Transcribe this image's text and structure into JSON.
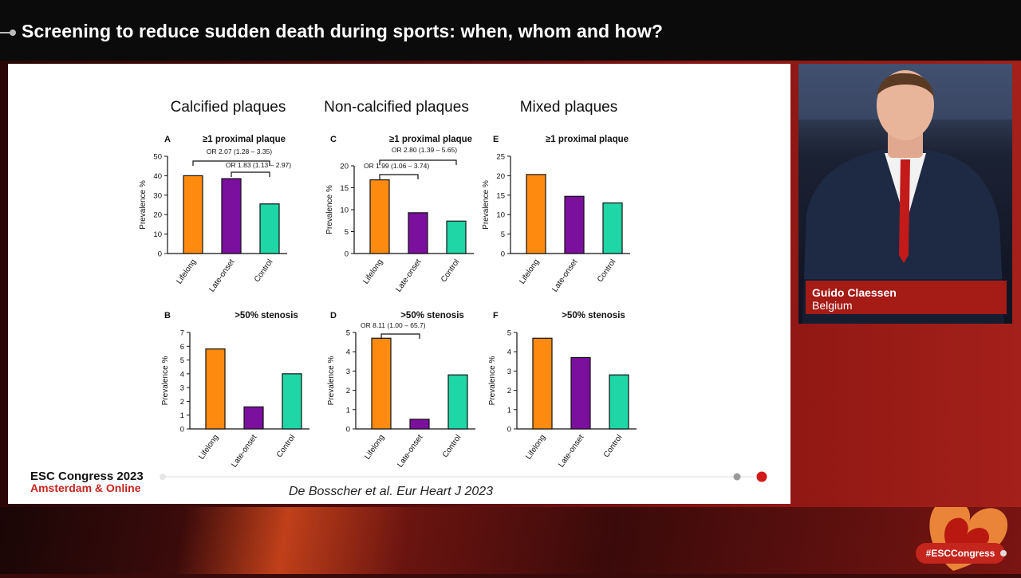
{
  "header": {
    "title": "Screening to reduce sudden death during sports: when, whom and how?"
  },
  "slide": {
    "column_titles": [
      "Calcified plaques",
      "Non-calcified plaques",
      "Mixed plaques"
    ],
    "footer_event": "ESC Congress 2023",
    "footer_location": "Amsterdam & Online",
    "citation": "De Bosscher et al. Eur Heart J 2023"
  },
  "speaker": {
    "name": "Guido Claessen",
    "country": "Belgium"
  },
  "bottom": {
    "hashtag": "#ESCCongress"
  },
  "colors": {
    "Lifelong": "#ff8a10",
    "Late-onset": "#7b0f9e",
    "Control": "#1ed6a6",
    "accent_red": "#c4251c"
  },
  "chart_data": [
    {
      "type": "bar",
      "panel": "A",
      "title": "≥1 proximal plaque",
      "ylabel": "Prevalence %",
      "categories": [
        "Lifelong",
        "Late-onset",
        "Control"
      ],
      "values": [
        40,
        38.5,
        25.5
      ],
      "ylim": [
        0,
        50
      ],
      "yticks": [
        "0",
        "10",
        "20",
        "30",
        "40",
        "50"
      ],
      "annotations": [
        {
          "text": "OR 2.07 (1.28 – 3.35)",
          "from": 0,
          "to": 2
        },
        {
          "text": "OR 1.83 (1.13 – 2.97)",
          "from": 1,
          "to": 2
        }
      ]
    },
    {
      "type": "bar",
      "panel": "C",
      "title": "≥1 proximal plaque",
      "ylabel": "Prevalence %",
      "categories": [
        "Lifelong",
        "Late-onset",
        "Control"
      ],
      "values": [
        16.8,
        9.3,
        7.4
      ],
      "ylim": [
        0,
        22
      ],
      "yticks": [
        "0",
        "5",
        "10",
        "15",
        "20"
      ],
      "annotations": [
        {
          "text": "OR 2.80 (1.39 – 5.65)",
          "from": 0,
          "to": 2
        },
        {
          "text": "OR 1.99 (1.06 – 3.74)",
          "from": 0,
          "to": 1
        }
      ]
    },
    {
      "type": "bar",
      "panel": "E",
      "title": "≥1 proximal plaque",
      "ylabel": "Prevalence %",
      "categories": [
        "Lifelong",
        "Late-onset",
        "Control"
      ],
      "values": [
        20.3,
        14.7,
        13
      ],
      "ylim": [
        0,
        25
      ],
      "yticks": [
        "0",
        "5",
        "10",
        "15",
        "20",
        "25"
      ],
      "annotations": []
    },
    {
      "type": "bar",
      "panel": "B",
      "title": ">50% stenosis",
      "ylabel": "Prevalence %",
      "categories": [
        "Lifelong",
        "Late-onset",
        "Control"
      ],
      "values": [
        5.8,
        1.6,
        4
      ],
      "ylim": [
        0,
        7
      ],
      "yticks": [
        "0",
        "1",
        "2",
        "3",
        "4",
        "5",
        "6",
        "7"
      ],
      "annotations": []
    },
    {
      "type": "bar",
      "panel": "D",
      "title": ">50% stenosis",
      "ylabel": "Prevalence %",
      "categories": [
        "Lifelong",
        "Late-onset",
        "Control"
      ],
      "values": [
        4.7,
        0.5,
        2.8
      ],
      "ylim": [
        0,
        5
      ],
      "yticks": [
        "0",
        "1",
        "2",
        "3",
        "4",
        "5"
      ],
      "annotations": [
        {
          "text": "OR 8.11 (1.00 – 65.7)",
          "from": 0,
          "to": 1
        }
      ]
    },
    {
      "type": "bar",
      "panel": "F",
      "title": ">50% stenosis",
      "ylabel": "Prevalence %",
      "categories": [
        "Lifelong",
        "Late-onset",
        "Control"
      ],
      "values": [
        4.7,
        3.7,
        2.8
      ],
      "ylim": [
        0,
        5
      ],
      "yticks": [
        "0",
        "1",
        "2",
        "3",
        "4",
        "5"
      ],
      "annotations": []
    }
  ]
}
